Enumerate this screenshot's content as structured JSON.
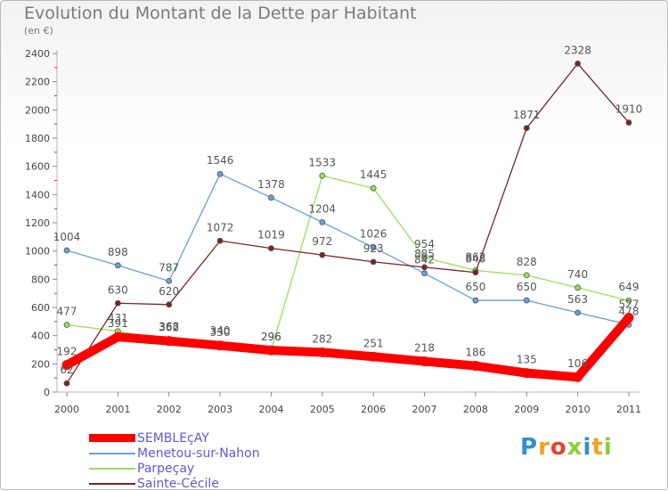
{
  "chart_data": {
    "type": "line",
    "title": "Evolution du Montant de la Dette par Habitant",
    "unit_label": "(en €)",
    "x": [
      "2000",
      "2001",
      "2002",
      "2003",
      "2004",
      "2005",
      "2006",
      "2007",
      "2008",
      "2009",
      "2010",
      "2011"
    ],
    "ylim": [
      0,
      2400
    ],
    "yticks": [
      0,
      200,
      400,
      600,
      800,
      1000,
      1200,
      1400,
      1600,
      1800,
      2000,
      2200,
      2400
    ],
    "grid": false,
    "legend_position": "bottom-left",
    "series": [
      {
        "name": "SEMBLEçAY",
        "color": "#ff0000",
        "values": [
          192,
          391,
          362,
          330,
          296,
          282,
          251,
          218,
          186,
          135,
          106,
          527
        ]
      },
      {
        "name": "Menetou-sur-Nahon",
        "color": "#6a9fd8",
        "values": [
          1004,
          898,
          787,
          1546,
          1378,
          1204,
          1026,
          842,
          650,
          650,
          563,
          478
        ]
      },
      {
        "name": "Parpeçay",
        "color": "#99e05a",
        "values": [
          477,
          431,
          368,
          340,
          296,
          1533,
          1445,
          954,
          862,
          828,
          740,
          649
        ]
      },
      {
        "name": "Sainte-Cécile",
        "color": "#7a2525",
        "values": [
          62,
          630,
          620,
          1072,
          1019,
          972,
          923,
          885,
          848,
          1871,
          2328,
          1910
        ]
      }
    ]
  },
  "logo": {
    "letters": [
      "P",
      "r",
      "o",
      "x",
      "i",
      "t",
      "i"
    ]
  }
}
